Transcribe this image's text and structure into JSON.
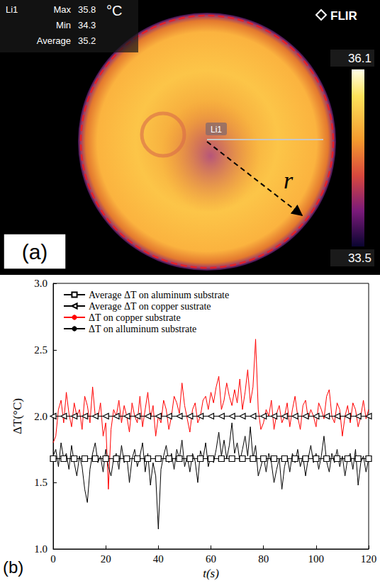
{
  "thermal_image": {
    "spot_name": "Li1",
    "stats": [
      {
        "label": "Max",
        "value": 35.8
      },
      {
        "label": "Min",
        "value": 34.3
      },
      {
        "label": "Average",
        "value": 35.2
      }
    ],
    "unit": "°C",
    "brand": "FLIR",
    "colorbar": {
      "max": 36.1,
      "min": 33.5
    },
    "line_label": "Li1",
    "radius_label": "r",
    "panel_label": "(a)"
  },
  "chart_data": {
    "type": "line",
    "panel_label": "(b)",
    "x_label": "t(s)",
    "y_label": "ΔT(°C)",
    "xlim": [
      0,
      120
    ],
    "xticks": [
      0,
      20,
      40,
      60,
      80,
      100,
      120
    ],
    "ylim": [
      1.0,
      3.0
    ],
    "yticks": [
      {
        "value": 1.0,
        "label": "1.0"
      },
      {
        "value": 1.5,
        "label": "1.5"
      },
      {
        "value": 2.0,
        "label": "2.0"
      },
      {
        "value": 2.5,
        "label": "2.5"
      },
      {
        "value": 3.0,
        "label": "3.0"
      }
    ],
    "grid": false,
    "legend": "upper left",
    "x": [
      0,
      1,
      2,
      3,
      4,
      5,
      6,
      7,
      8,
      9,
      10,
      11,
      12,
      13,
      14,
      15,
      16,
      17,
      18,
      19,
      20,
      21,
      22,
      23,
      24,
      25,
      26,
      27,
      28,
      29,
      30,
      31,
      32,
      33,
      34,
      35,
      36,
      37,
      38,
      39,
      40,
      41,
      42,
      43,
      44,
      45,
      46,
      47,
      48,
      49,
      50,
      51,
      52,
      53,
      54,
      55,
      56,
      57,
      58,
      59,
      60,
      61,
      62,
      63,
      64,
      65,
      66,
      67,
      68,
      69,
      70,
      71,
      72,
      73,
      74,
      75,
      76,
      77,
      78,
      79,
      80,
      81,
      82,
      83,
      84,
      85,
      86,
      87,
      88,
      89,
      90,
      91,
      92,
      93,
      94,
      95,
      96,
      97,
      98,
      99,
      100,
      101,
      102,
      103,
      104,
      105,
      106,
      107,
      108,
      109,
      110,
      111,
      112,
      113,
      114,
      115,
      116,
      117,
      118,
      119,
      120
    ],
    "series": [
      {
        "name": "Average ΔT on aluminum substrate",
        "color": "#000000",
        "marker": "square",
        "line_style": "solid",
        "x": [
          0,
          4,
          8,
          12,
          16,
          20,
          24,
          28,
          32,
          36,
          40,
          44,
          48,
          52,
          56,
          60,
          64,
          68,
          72,
          76,
          80,
          84,
          88,
          92,
          96,
          100,
          104,
          108,
          112,
          116,
          120
        ],
        "values": [
          1.68,
          1.68,
          1.68,
          1.68,
          1.68,
          1.68,
          1.68,
          1.68,
          1.68,
          1.68,
          1.68,
          1.68,
          1.68,
          1.68,
          1.68,
          1.68,
          1.68,
          1.68,
          1.68,
          1.68,
          1.68,
          1.68,
          1.68,
          1.68,
          1.68,
          1.68,
          1.68,
          1.68,
          1.68,
          1.68,
          1.68
        ]
      },
      {
        "name": "Average ΔT on copper sustrate",
        "color": "#000000",
        "marker": "triangle-left",
        "line_style": "solid",
        "x": [
          0,
          4,
          8,
          12,
          16,
          20,
          24,
          28,
          32,
          36,
          40,
          44,
          48,
          52,
          56,
          60,
          64,
          68,
          72,
          76,
          80,
          84,
          88,
          92,
          96,
          100,
          104,
          108,
          112,
          116,
          120
        ],
        "values": [
          2.0,
          2.0,
          2.0,
          2.0,
          2.0,
          2.0,
          2.0,
          2.0,
          2.0,
          2.0,
          2.0,
          2.0,
          2.0,
          2.0,
          2.0,
          2.0,
          2.0,
          2.0,
          2.0,
          2.0,
          2.0,
          2.0,
          2.0,
          2.0,
          2.0,
          2.0,
          2.0,
          2.0,
          2.0,
          2.0,
          2.0
        ]
      },
      {
        "name": "ΔT on copper substrate",
        "color": "#ff0000",
        "marker": "none",
        "line_style": "solid",
        "values": [
          1.8,
          1.85,
          2.05,
          2.12,
          1.95,
          2.18,
          2.02,
          1.92,
          2.1,
          2.0,
          2.05,
          1.9,
          2.15,
          2.08,
          1.95,
          2.22,
          2.0,
          1.98,
          2.1,
          1.85,
          1.95,
          1.45,
          1.9,
          2.05,
          2.0,
          2.12,
          1.95,
          2.08,
          2.0,
          1.88,
          2.1,
          2.0,
          1.95,
          2.15,
          1.92,
          2.05,
          2.18,
          1.98,
          2.08,
          1.85,
          2.0,
          1.95,
          2.12,
          2.05,
          1.9,
          2.0,
          2.15,
          2.1,
          2.02,
          2.25,
          2.08,
          1.98,
          1.88,
          2.05,
          2.1,
          1.95,
          2.0,
          2.12,
          2.15,
          2.05,
          2.18,
          2.1,
          2.22,
          2.3,
          2.05,
          2.12,
          2.25,
          2.15,
          2.08,
          2.2,
          2.1,
          2.28,
          2.05,
          2.18,
          2.35,
          2.1,
          2.22,
          2.58,
          2.05,
          1.9,
          1.95,
          2.05,
          2.0,
          2.12,
          1.9,
          2.02,
          2.08,
          1.95,
          2.0,
          2.1,
          1.92,
          2.05,
          2.15,
          2.0,
          1.9,
          2.08,
          2.12,
          1.98,
          2.05,
          2.0,
          1.92,
          2.1,
          2.05,
          1.98,
          2.15,
          2.2,
          2.0,
          1.95,
          2.1,
          2.05,
          1.85,
          2.0,
          2.08,
          1.95,
          2.1,
          2.05,
          1.92,
          2.0,
          2.12,
          1.98,
          2.05
        ]
      },
      {
        "name": "ΔT on alluminum substrate",
        "color": "#000000",
        "marker": "none",
        "line_style": "solid",
        "values": [
          1.7,
          1.75,
          1.62,
          1.8,
          1.68,
          1.72,
          1.6,
          1.78,
          1.65,
          1.55,
          1.7,
          1.62,
          1.45,
          1.35,
          1.6,
          1.72,
          1.8,
          1.65,
          1.7,
          1.58,
          1.75,
          1.62,
          1.55,
          1.68,
          1.72,
          1.6,
          1.78,
          1.65,
          1.7,
          1.5,
          1.68,
          1.75,
          1.62,
          1.7,
          1.8,
          1.58,
          1.72,
          1.48,
          1.65,
          1.55,
          1.15,
          1.6,
          1.7,
          1.78,
          1.65,
          1.72,
          1.6,
          1.75,
          1.68,
          1.82,
          1.62,
          1.7,
          1.58,
          1.72,
          1.66,
          1.5,
          1.74,
          1.68,
          1.8,
          1.62,
          1.7,
          1.65,
          1.75,
          1.88,
          1.7,
          1.82,
          1.68,
          1.78,
          1.95,
          1.72,
          1.8,
          1.66,
          1.75,
          1.85,
          1.7,
          1.92,
          1.68,
          1.78,
          1.55,
          1.62,
          1.7,
          1.58,
          1.72,
          1.65,
          1.5,
          1.6,
          1.68,
          1.45,
          1.62,
          1.7,
          1.58,
          1.72,
          1.65,
          1.75,
          1.62,
          1.7,
          1.55,
          1.68,
          1.78,
          1.65,
          1.72,
          1.6,
          1.7,
          1.85,
          1.66,
          1.58,
          1.72,
          1.65,
          1.75,
          1.62,
          1.7,
          1.55,
          1.68,
          1.72,
          1.6,
          1.75,
          1.48,
          1.65,
          1.7,
          1.58,
          1.68
        ]
      }
    ]
  }
}
